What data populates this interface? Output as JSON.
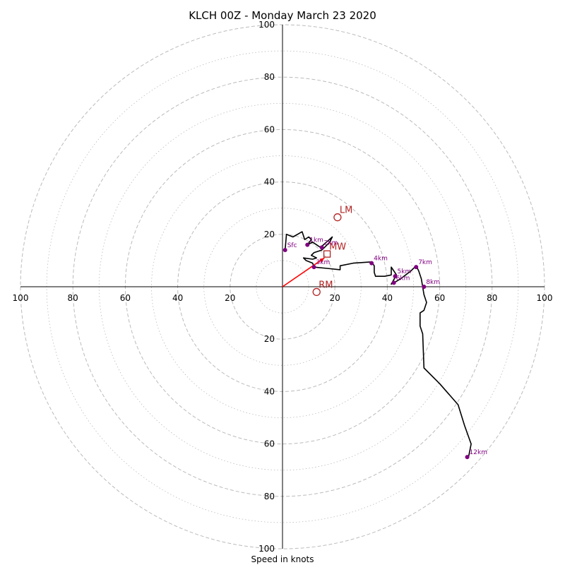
{
  "chart_data": {
    "type": "hodograph",
    "title": "KLCH 00Z - Monday March 23 2020",
    "xlabel": "Speed in knots",
    "units": "knots",
    "range": [
      -100,
      100
    ],
    "ring_step": 10,
    "tick_labels": [
      "100",
      "80",
      "60",
      "40",
      "20",
      "0",
      "20",
      "40",
      "60",
      "80",
      "100"
    ],
    "tick_values": [
      -100,
      -80,
      -60,
      -40,
      -20,
      20,
      40,
      60,
      80,
      100
    ],
    "grid": true,
    "colors": {
      "trace": "#000000",
      "height_points": "#800080",
      "motion": "#b22222",
      "mean_wind_vector": "#ff0000",
      "grid": "#bbbbbb"
    },
    "trace_uv": [
      [
        1,
        14
      ],
      [
        1.5,
        20
      ],
      [
        4,
        19
      ],
      [
        7.5,
        21
      ],
      [
        8.5,
        18
      ],
      [
        10,
        19
      ],
      [
        11,
        18
      ],
      [
        9.5,
        16
      ],
      [
        11.5,
        17
      ],
      [
        13,
        16
      ],
      [
        14.5,
        15
      ],
      [
        19,
        19
      ],
      [
        18,
        17
      ],
      [
        16,
        15
      ],
      [
        15,
        14
      ],
      [
        12,
        13
      ],
      [
        11,
        12
      ],
      [
        13,
        11
      ],
      [
        11.5,
        10.5
      ],
      [
        8,
        11
      ],
      [
        9,
        10
      ],
      [
        11.5,
        9
      ],
      [
        12,
        7.5
      ],
      [
        17,
        7
      ],
      [
        22,
        6.5
      ],
      [
        22,
        8
      ],
      [
        27,
        9
      ],
      [
        34,
        9.5
      ],
      [
        35,
        8
      ],
      [
        35,
        5.5
      ],
      [
        35.5,
        4
      ],
      [
        39,
        4
      ],
      [
        41.5,
        4.5
      ],
      [
        41.5,
        7.5
      ],
      [
        42.5,
        6
      ],
      [
        43.5,
        4.5
      ],
      [
        41.5,
        1
      ],
      [
        42.5,
        1.5
      ],
      [
        45,
        3
      ],
      [
        49,
        6
      ],
      [
        51,
        8
      ],
      [
        52,
        6
      ],
      [
        53,
        3
      ],
      [
        54,
        -3
      ],
      [
        55,
        -6
      ],
      [
        54,
        -9
      ],
      [
        52.5,
        -10
      ],
      [
        52.5,
        -15
      ],
      [
        53.5,
        -18
      ],
      [
        54,
        -31
      ],
      [
        60,
        -37
      ],
      [
        67,
        -45
      ],
      [
        69.5,
        -53
      ],
      [
        72,
        -60
      ],
      [
        71,
        -65
      ],
      [
        70.5,
        -65
      ]
    ],
    "height_points": [
      {
        "label": "Sfc",
        "u": 1,
        "v": 14
      },
      {
        "label": "1km",
        "u": 9.5,
        "v": 16
      },
      {
        "label": "2km",
        "u": 15,
        "v": 15
      },
      {
        "label": "3km",
        "u": 12,
        "v": 7.5
      },
      {
        "label": "4km",
        "u": 34,
        "v": 9
      },
      {
        "label": "5km",
        "u": 43,
        "v": 4
      },
      {
        "label": "6km",
        "u": 42.5,
        "v": 1.5
      },
      {
        "label": "7km",
        "u": 51,
        "v": 7.5
      },
      {
        "label": "8km",
        "u": 54,
        "v": 0
      },
      {
        "label": "12km",
        "u": 70.5,
        "v": -65
      }
    ],
    "storm_motions": [
      {
        "label": "LM",
        "u": 21,
        "v": 26.5,
        "marker": "circle"
      },
      {
        "label": "MW",
        "u": 17,
        "v": 12.5,
        "marker": "square"
      },
      {
        "label": "RM",
        "u": 13,
        "v": -2,
        "marker": "circle"
      }
    ],
    "mean_wind_vector": {
      "from_u": 0,
      "from_v": 0,
      "to_u": 16,
      "to_v": 11
    }
  }
}
